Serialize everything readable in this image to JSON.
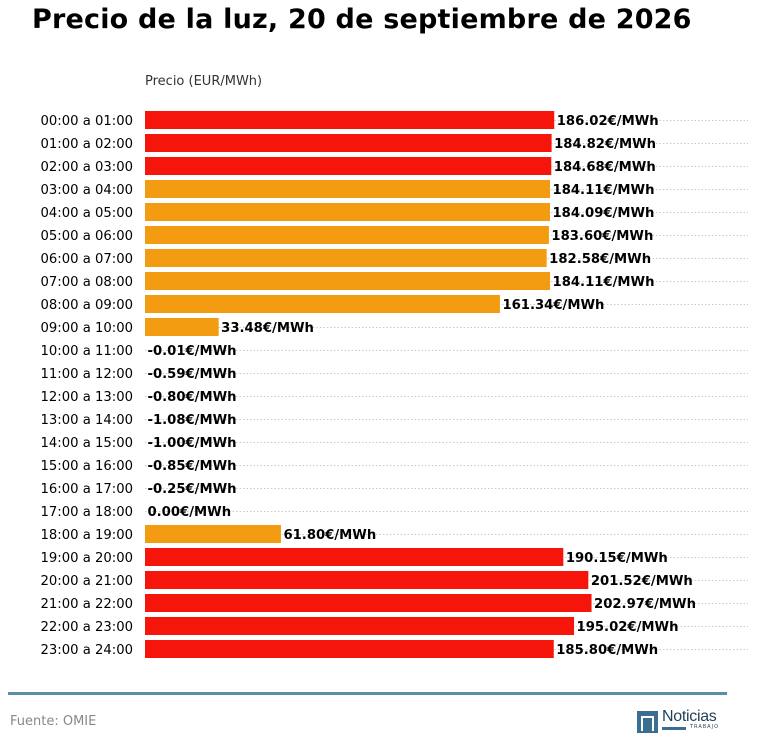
{
  "title": "Precio de la luz, 20 de septiembre de 2026",
  "footer": {
    "source": "Fuente: OMIE",
    "logo_text": "Noticias",
    "logo_subtext": "TRABAJO"
  },
  "colors": {
    "high": "#f5150a",
    "mid": "#f39c12",
    "grid": "#bbbbbb",
    "rule": "#5b8fa8"
  },
  "chart_data": {
    "type": "bar",
    "orientation": "horizontal",
    "ylabel": "Precio (EUR/MWh)",
    "value_suffix": "€/MWh",
    "categories": [
      "00:00 a 01:00",
      "01:00 a 02:00",
      "02:00 a 03:00",
      "03:00 a 04:00",
      "04:00 a 05:00",
      "05:00 a 06:00",
      "06:00 a 07:00",
      "07:00 a 08:00",
      "08:00 a 09:00",
      "09:00 a 10:00",
      "10:00 a 11:00",
      "11:00 a 12:00",
      "12:00 a 13:00",
      "13:00 a 14:00",
      "14:00 a 15:00",
      "15:00 a 16:00",
      "16:00 a 17:00",
      "17:00 a 18:00",
      "18:00 a 19:00",
      "19:00 a 20:00",
      "20:00 a 21:00",
      "21:00 a 22:00",
      "22:00 a 23:00",
      "23:00 a 24:00"
    ],
    "values": [
      186.02,
      184.82,
      184.68,
      184.11,
      184.09,
      183.6,
      182.58,
      184.11,
      161.34,
      33.48,
      -0.01,
      -0.59,
      -0.8,
      -1.08,
      -1.0,
      -0.85,
      -0.25,
      0.0,
      61.8,
      190.15,
      201.52,
      202.97,
      195.02,
      185.8
    ],
    "value_labels": [
      "186.02€/MWh",
      "184.82€/MWh",
      "184.68€/MWh",
      "184.11€/MWh",
      "184.09€/MWh",
      "183.60€/MWh",
      "182.58€/MWh",
      "184.11€/MWh",
      "161.34€/MWh",
      "33.48€/MWh",
      "-0.01€/MWh",
      "-0.59€/MWh",
      "-0.80€/MWh",
      "-1.08€/MWh",
      "-1.00€/MWh",
      "-0.85€/MWh",
      "-0.25€/MWh",
      "0.00€/MWh",
      "61.80€/MWh",
      "190.15€/MWh",
      "201.52€/MWh",
      "202.97€/MWh",
      "195.02€/MWh",
      "185.80€/MWh"
    ],
    "bar_colors": [
      "#f5150a",
      "#f5150a",
      "#f5150a",
      "#f39c12",
      "#f39c12",
      "#f39c12",
      "#f39c12",
      "#f39c12",
      "#f39c12",
      "#f39c12",
      "#f39c12",
      "#f39c12",
      "#f39c12",
      "#f39c12",
      "#f39c12",
      "#f39c12",
      "#f39c12",
      "#f39c12",
      "#f39c12",
      "#f5150a",
      "#f5150a",
      "#f5150a",
      "#f5150a",
      "#f5150a"
    ],
    "xlim": [
      0,
      203
    ],
    "grid": "dotted horizontal lines per row"
  }
}
